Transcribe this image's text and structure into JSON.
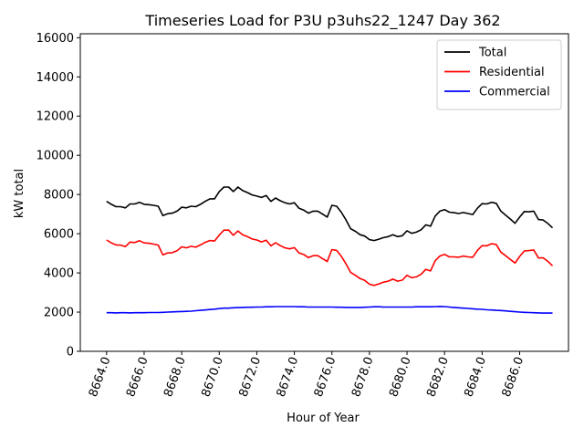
{
  "chart_data": {
    "type": "line",
    "title": "Timeseries Load for P3U p3uhs22_1247  Day 362",
    "xlabel": "Hour of Year",
    "ylabel": "kW total",
    "xlim": [
      8662.6,
      8688.6
    ],
    "ylim": [
      0,
      16200
    ],
    "xticks": [
      8664,
      8666,
      8668,
      8670,
      8672,
      8674,
      8676,
      8678,
      8680,
      8682,
      8684,
      8686
    ],
    "xtick_labels": [
      "8664.0",
      "8666.0",
      "8668.0",
      "8670.0",
      "8672.0",
      "8674.0",
      "8676.0",
      "8678.0",
      "8680.0",
      "8682.0",
      "8684.0",
      "8686.0"
    ],
    "yticks": [
      0,
      2000,
      4000,
      6000,
      8000,
      10000,
      12000,
      14000,
      16000
    ],
    "ytick_labels": [
      "0",
      "2000",
      "4000",
      "6000",
      "8000",
      "10000",
      "12000",
      "14000",
      "16000"
    ],
    "legend_position": "top-right",
    "x_start": 8664,
    "x_step": 0.25,
    "series": [
      {
        "name": "Total",
        "color": "#000000",
        "values": [
          7650,
          7500,
          7380,
          7380,
          7320,
          7520,
          7520,
          7600,
          7500,
          7480,
          7450,
          7400,
          6920,
          7020,
          7050,
          7150,
          7350,
          7320,
          7400,
          7380,
          7500,
          7650,
          7780,
          7780,
          8150,
          8380,
          8380,
          8150,
          8380,
          8200,
          8100,
          7980,
          7920,
          7850,
          7950,
          7650,
          7820,
          7680,
          7580,
          7520,
          7580,
          7300,
          7200,
          7050,
          7150,
          7150,
          7000,
          6850,
          7450,
          7400,
          7100,
          6700,
          6250,
          6120,
          5950,
          5880,
          5700,
          5650,
          5720,
          5800,
          5850,
          5950,
          5850,
          5900,
          6150,
          6020,
          6080,
          6200,
          6450,
          6380,
          6900,
          7150,
          7230,
          7100,
          7070,
          7030,
          7080,
          7030,
          6980,
          7300,
          7530,
          7520,
          7600,
          7550,
          7150,
          6950,
          6750,
          6530,
          6850,
          7130,
          7120,
          7150,
          6720,
          6700,
          6520,
          6300
        ]
      },
      {
        "name": "Residential",
        "color": "#ff0000",
        "values": [
          5680,
          5530,
          5430,
          5420,
          5340,
          5570,
          5550,
          5640,
          5530,
          5510,
          5470,
          5420,
          4920,
          5020,
          5030,
          5130,
          5330,
          5280,
          5360,
          5310,
          5430,
          5560,
          5650,
          5630,
          5930,
          6180,
          6180,
          5920,
          6140,
          5940,
          5850,
          5730,
          5680,
          5580,
          5670,
          5380,
          5540,
          5390,
          5280,
          5230,
          5290,
          5020,
          4940,
          4780,
          4880,
          4880,
          4730,
          4580,
          5190,
          5150,
          4850,
          4460,
          4020,
          3880,
          3710,
          3620,
          3420,
          3360,
          3440,
          3530,
          3580,
          3680,
          3580,
          3630,
          3880,
          3750,
          3800,
          3930,
          4180,
          4100,
          4620,
          4860,
          4950,
          4820,
          4820,
          4800,
          4860,
          4820,
          4800,
          5150,
          5390,
          5380,
          5490,
          5450,
          5060,
          4880,
          4690,
          4500,
          4840,
          5120,
          5140,
          5170,
          4760,
          4770,
          4590,
          4360
        ]
      },
      {
        "name": "Commercial",
        "color": "#0000ff",
        "values": [
          1970,
          1970,
          1960,
          1970,
          1970,
          1960,
          1970,
          1970,
          1970,
          1980,
          1980,
          1980,
          1990,
          2000,
          2010,
          2020,
          2030,
          2040,
          2050,
          2070,
          2090,
          2110,
          2130,
          2150,
          2180,
          2200,
          2200,
          2220,
          2230,
          2240,
          2250,
          2250,
          2260,
          2260,
          2270,
          2270,
          2280,
          2280,
          2280,
          2280,
          2280,
          2270,
          2270,
          2260,
          2260,
          2260,
          2260,
          2260,
          2260,
          2250,
          2250,
          2240,
          2240,
          2240,
          2240,
          2250,
          2260,
          2270,
          2270,
          2260,
          2260,
          2260,
          2260,
          2260,
          2260,
          2260,
          2270,
          2270,
          2270,
          2270,
          2280,
          2290,
          2280,
          2260,
          2240,
          2220,
          2200,
          2190,
          2170,
          2150,
          2140,
          2120,
          2110,
          2090,
          2080,
          2060,
          2040,
          2020,
          2000,
          1990,
          1980,
          1970,
          1960,
          1950,
          1950,
          1950
        ]
      }
    ]
  }
}
